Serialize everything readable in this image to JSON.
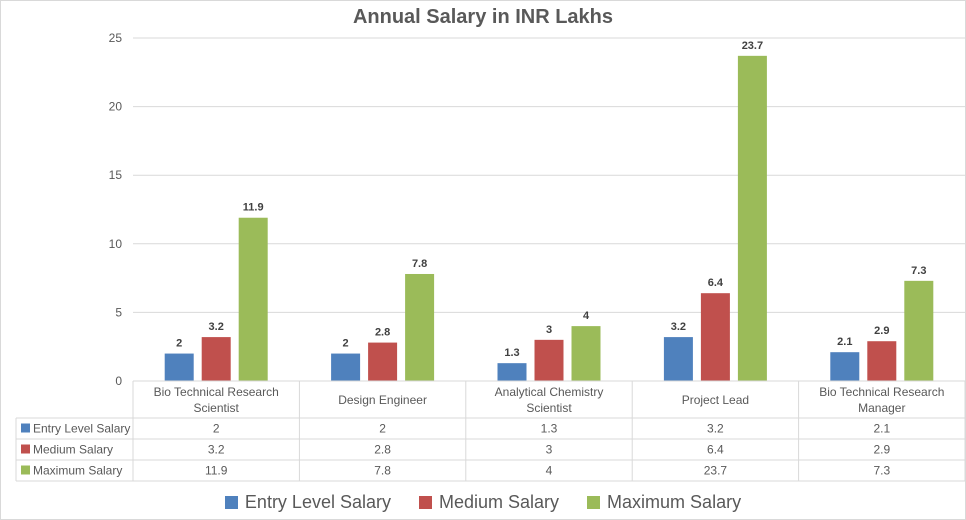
{
  "chart_data": {
    "type": "bar",
    "title": "Annual Salary in INR Lakhs",
    "xlabel": "",
    "ylabel": "",
    "ylim": [
      0,
      25
    ],
    "yticks": [
      0,
      5,
      10,
      15,
      20,
      25
    ],
    "grid": true,
    "legend_position": "bottom",
    "categories": [
      [
        "Bio Technical Research",
        "Scientist"
      ],
      [
        "Design Engineer"
      ],
      [
        "Analytical Chemistry",
        "Scientist"
      ],
      [
        "Project Lead"
      ],
      [
        "Bio Technical Research",
        "Manager"
      ]
    ],
    "series": [
      {
        "name": "Entry Level Salary",
        "color": "#4f81bd",
        "values": [
          2,
          2,
          1.3,
          3.2,
          2.1
        ]
      },
      {
        "name": "Medium Salary",
        "color": "#c0504d",
        "values": [
          3.2,
          2.8,
          3,
          6.4,
          2.9
        ]
      },
      {
        "name": "Maximum Salary",
        "color": "#9bbb59",
        "values": [
          11.9,
          7.8,
          4,
          23.7,
          7.3
        ]
      }
    ],
    "data_table": true
  }
}
